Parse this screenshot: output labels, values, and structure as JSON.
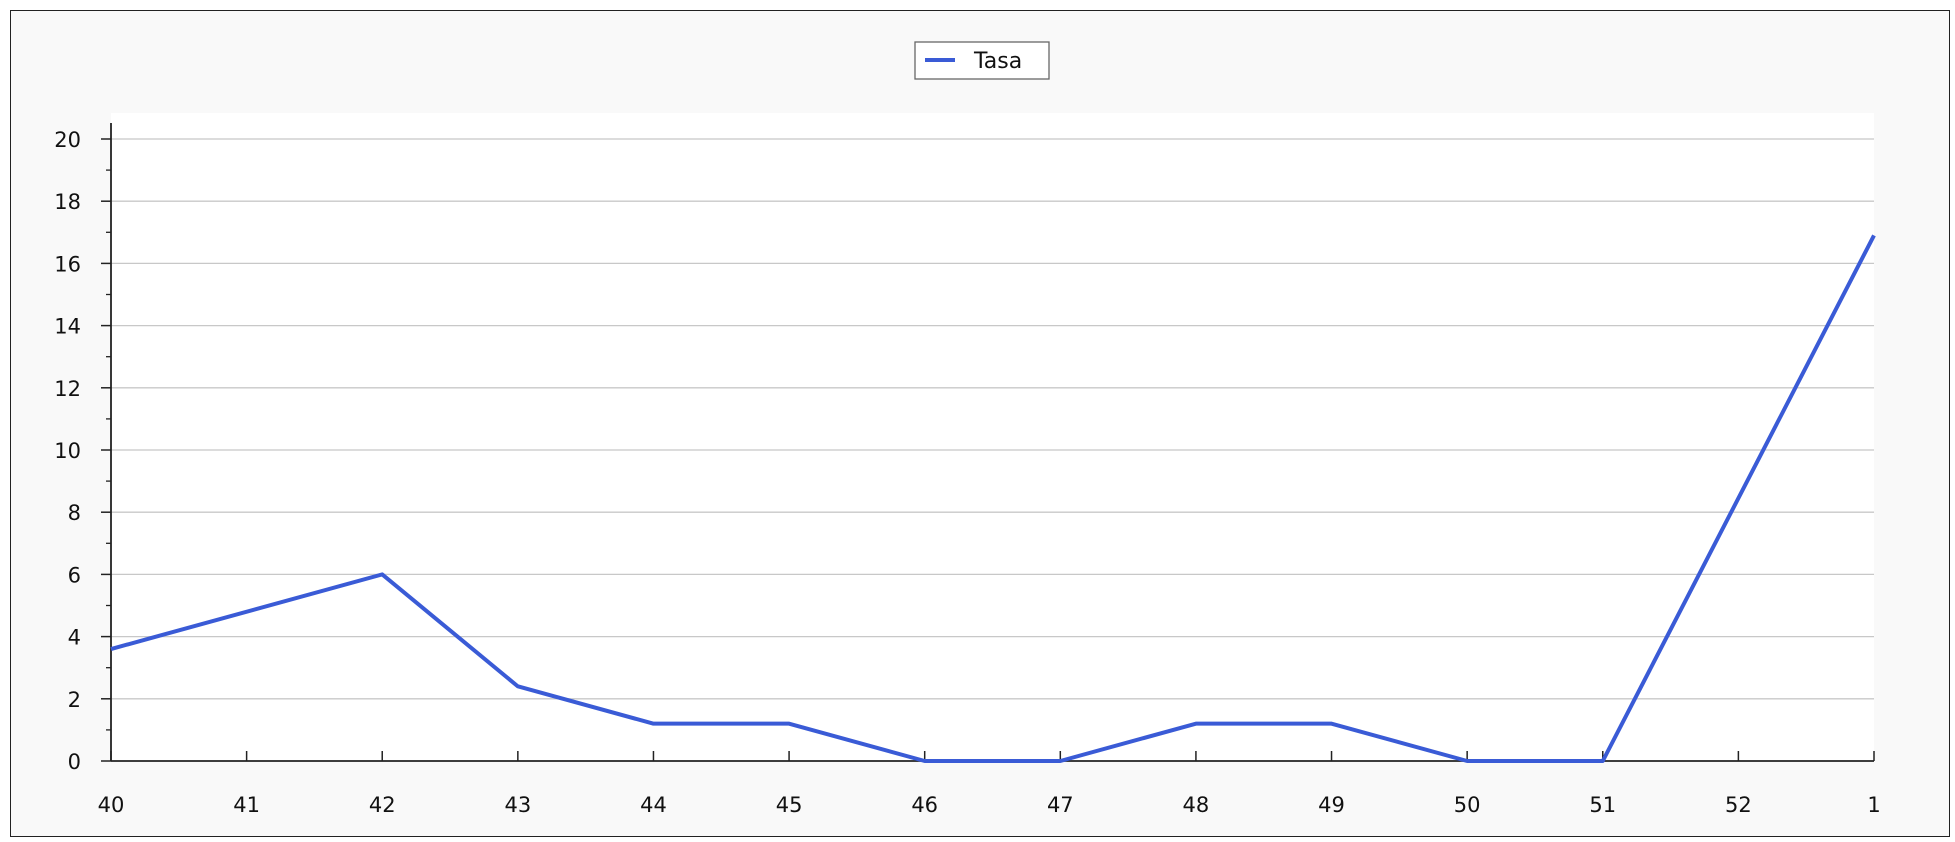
{
  "chart_data": {
    "type": "line",
    "title": "",
    "xlabel": "",
    "ylabel": "",
    "categories": [
      "40",
      "41",
      "42",
      "43",
      "44",
      "45",
      "46",
      "47",
      "48",
      "49",
      "50",
      "51",
      "52",
      "1"
    ],
    "series": [
      {
        "name": "Tasa",
        "color": "#3a5bd6",
        "values": [
          3.6,
          null,
          6.0,
          2.4,
          1.2,
          1.2,
          0.0,
          0.0,
          1.2,
          1.2,
          0.0,
          0.0,
          null,
          16.9
        ]
      }
    ],
    "ylim": [
      0,
      20
    ],
    "yticks": [
      "0",
      "2",
      "4",
      "6",
      "8",
      "10",
      "12",
      "14",
      "16",
      "18",
      "20"
    ],
    "grid": true,
    "legend": "top-center"
  }
}
